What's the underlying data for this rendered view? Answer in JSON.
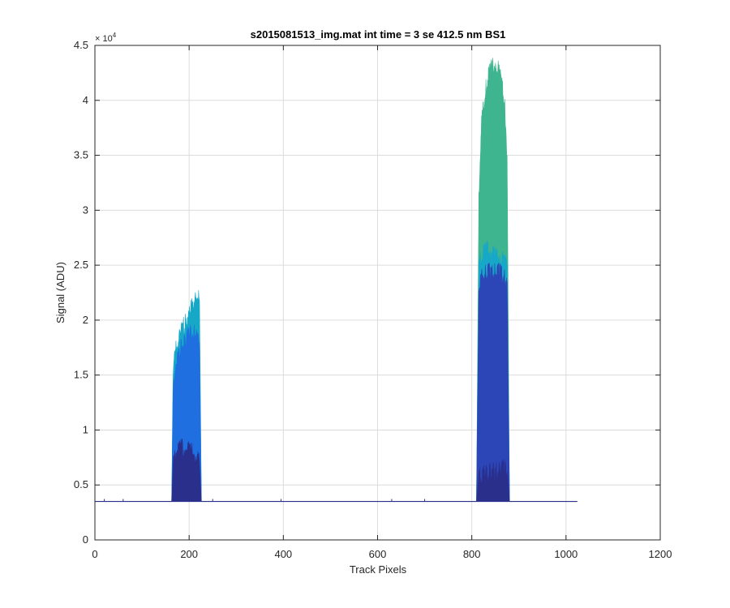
{
  "chart_data": {
    "type": "area",
    "title": "s2015081513_img.mat int time = 3 se  412.5 nm BS1",
    "xlabel": "Track Pixels",
    "ylabel": "Signal (ADU)",
    "xlim": [
      0,
      1200
    ],
    "ylim": [
      0,
      45000
    ],
    "x_ticks": [
      0,
      200,
      400,
      600,
      800,
      1000,
      1200
    ],
    "x_tick_labels": [
      "0",
      "200",
      "400",
      "600",
      "800",
      "1000",
      "1200"
    ],
    "y_ticks": [
      0,
      5000,
      10000,
      15000,
      20000,
      25000,
      30000,
      35000,
      40000,
      45000
    ],
    "y_tick_labels": [
      "0",
      "0.5",
      "1",
      "1.5",
      "2",
      "2.5",
      "3",
      "3.5",
      "4",
      "4.5"
    ],
    "y_exponent_label": "× 10",
    "y_exponent_power": "4",
    "grid": true,
    "baseline": 3500,
    "x_range": [
      0,
      1024
    ],
    "series": [
      {
        "color": "#3fb58f",
        "segments": [
          {
            "x": [
              810,
              815,
              820,
              830,
              840,
              850,
              860,
              870,
              875,
              880
            ],
            "y": [
              3500,
              31000,
              38000,
              41500,
              43000,
              43500,
              42500,
              40000,
              35000,
              3500
            ]
          }
        ]
      },
      {
        "color": "#17a8c8",
        "segments": [
          {
            "x": [
              163,
              166,
              172,
              182,
              192,
              202,
              212,
              218,
              222,
              226
            ],
            "y": [
              3500,
              15500,
              17500,
              19000,
              20000,
              21000,
              22000,
              22800,
              21800,
              3500
            ]
          },
          {
            "x": [
              810,
              815,
              820,
              830,
              840,
              850,
              860,
              870,
              875,
              880
            ],
            "y": [
              3500,
              25000,
              26000,
              26500,
              26500,
              26000,
              26000,
              25500,
              25000,
              3500
            ]
          }
        ]
      },
      {
        "color": "#1f6fe0",
        "segments": [
          {
            "x": [
              163,
              166,
              172,
              182,
              192,
              202,
              212,
              218,
              222,
              226
            ],
            "y": [
              3500,
              13500,
              16500,
              17500,
              18500,
              19000,
              19000,
              18500,
              18000,
              3500
            ]
          }
        ]
      },
      {
        "color": "#2c46b8",
        "segments": [
          {
            "x": [
              810,
              815,
              820,
              830,
              840,
              850,
              860,
              870,
              875,
              880
            ],
            "y": [
              3500,
              23000,
              24000,
              24500,
              24500,
              24500,
              24500,
              24000,
              23500,
              3500
            ]
          }
        ]
      },
      {
        "color": "#2a2f8c",
        "segments": [
          {
            "x": [
              163,
              166,
              172,
              182,
              192,
              202,
              212,
              218,
              222,
              226
            ],
            "y": [
              3500,
              7000,
              8200,
              8700,
              8600,
              8300,
              8000,
              7500,
              7000,
              3500
            ]
          },
          {
            "x": [
              810,
              815,
              820,
              830,
              840,
              850,
              860,
              870,
              875,
              880
            ],
            "y": [
              3500,
              5800,
              6100,
              6200,
              6300,
              6400,
              6500,
              6700,
              6200,
              3500
            ]
          }
        ]
      }
    ]
  }
}
